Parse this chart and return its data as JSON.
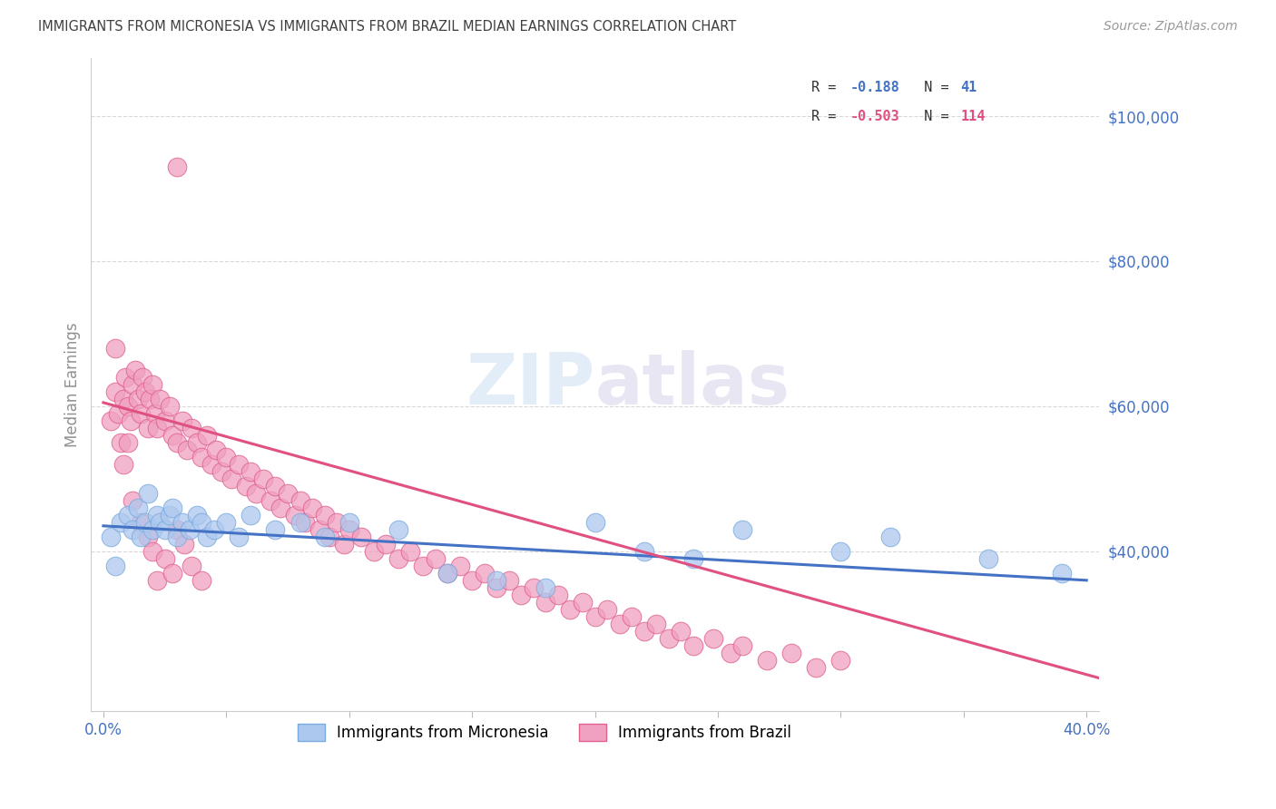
{
  "title": "IMMIGRANTS FROM MICRONESIA VS IMMIGRANTS FROM BRAZIL MEDIAN EARNINGS CORRELATION CHART",
  "source": "Source: ZipAtlas.com",
  "ylabel": "Median Earnings",
  "ylim": [
    18000,
    108000
  ],
  "xlim": [
    -0.005,
    0.405
  ],
  "y_ticks": [
    40000,
    60000,
    80000,
    100000
  ],
  "y_tick_labels": [
    "$40,000",
    "$60,000",
    "$80,000",
    "$100,000"
  ],
  "x_ticks": [
    0.0,
    0.05,
    0.1,
    0.15,
    0.2,
    0.25,
    0.3,
    0.35,
    0.4
  ],
  "line_color_mic": "#4472c4",
  "line_color_bra": "#e05080",
  "scatter_face_mic": "#adc8ee",
  "scatter_edge_mic": "#7aaade",
  "scatter_face_bra": "#f0a0c0",
  "scatter_edge_bra": "#e06090",
  "background_color": "#ffffff",
  "grid_color": "#d8d8d8",
  "title_color": "#404040",
  "axis_label_color": "#909090",
  "tick_label_color": "#4472c4",
  "watermark_color": "#cde0f0",
  "micronesia_x": [
    0.003,
    0.005,
    0.007,
    0.01,
    0.012,
    0.014,
    0.015,
    0.017,
    0.018,
    0.02,
    0.022,
    0.023,
    0.025,
    0.027,
    0.028,
    0.03,
    0.032,
    0.035,
    0.038,
    0.04,
    0.042,
    0.045,
    0.05,
    0.055,
    0.06,
    0.07,
    0.08,
    0.09,
    0.1,
    0.12,
    0.14,
    0.16,
    0.18,
    0.2,
    0.22,
    0.24,
    0.26,
    0.3,
    0.32,
    0.36,
    0.39
  ],
  "micronesia_y": [
    42000,
    38000,
    44000,
    45000,
    43000,
    46000,
    42000,
    44000,
    48000,
    43000,
    45000,
    44000,
    43000,
    45000,
    46000,
    42000,
    44000,
    43000,
    45000,
    44000,
    42000,
    43000,
    44000,
    42000,
    45000,
    43000,
    44000,
    42000,
    44000,
    43000,
    37000,
    36000,
    35000,
    44000,
    40000,
    39000,
    43000,
    40000,
    42000,
    39000,
    37000
  ],
  "brazil_x": [
    0.003,
    0.005,
    0.006,
    0.007,
    0.008,
    0.009,
    0.01,
    0.011,
    0.012,
    0.013,
    0.014,
    0.015,
    0.016,
    0.017,
    0.018,
    0.019,
    0.02,
    0.021,
    0.022,
    0.023,
    0.025,
    0.027,
    0.028,
    0.03,
    0.032,
    0.034,
    0.036,
    0.038,
    0.04,
    0.042,
    0.044,
    0.046,
    0.048,
    0.05,
    0.052,
    0.055,
    0.058,
    0.06,
    0.062,
    0.065,
    0.068,
    0.07,
    0.072,
    0.075,
    0.078,
    0.08,
    0.082,
    0.085,
    0.088,
    0.09,
    0.092,
    0.095,
    0.098,
    0.1,
    0.105,
    0.11,
    0.115,
    0.12,
    0.125,
    0.13,
    0.135,
    0.14,
    0.145,
    0.15,
    0.155,
    0.16,
    0.165,
    0.17,
    0.175,
    0.18,
    0.185,
    0.19,
    0.195,
    0.2,
    0.205,
    0.21,
    0.215,
    0.22,
    0.225,
    0.23,
    0.235,
    0.24,
    0.248,
    0.255,
    0.26,
    0.27,
    0.28,
    0.29,
    0.3,
    0.005,
    0.008,
    0.01,
    0.012,
    0.015,
    0.018,
    0.02,
    0.022,
    0.025,
    0.028,
    0.03,
    0.033,
    0.036,
    0.04,
    0.03
  ],
  "brazil_y": [
    58000,
    62000,
    59000,
    55000,
    61000,
    64000,
    60000,
    58000,
    63000,
    65000,
    61000,
    59000,
    64000,
    62000,
    57000,
    61000,
    63000,
    59000,
    57000,
    61000,
    58000,
    60000,
    56000,
    55000,
    58000,
    54000,
    57000,
    55000,
    53000,
    56000,
    52000,
    54000,
    51000,
    53000,
    50000,
    52000,
    49000,
    51000,
    48000,
    50000,
    47000,
    49000,
    46000,
    48000,
    45000,
    47000,
    44000,
    46000,
    43000,
    45000,
    42000,
    44000,
    41000,
    43000,
    42000,
    40000,
    41000,
    39000,
    40000,
    38000,
    39000,
    37000,
    38000,
    36000,
    37000,
    35000,
    36000,
    34000,
    35000,
    33000,
    34000,
    32000,
    33000,
    31000,
    32000,
    30000,
    31000,
    29000,
    30000,
    28000,
    29000,
    27000,
    28000,
    26000,
    27000,
    25000,
    26000,
    24000,
    25000,
    68000,
    52000,
    55000,
    47000,
    44000,
    42000,
    40000,
    36000,
    39000,
    37000,
    43000,
    41000,
    38000,
    36000,
    93000
  ]
}
